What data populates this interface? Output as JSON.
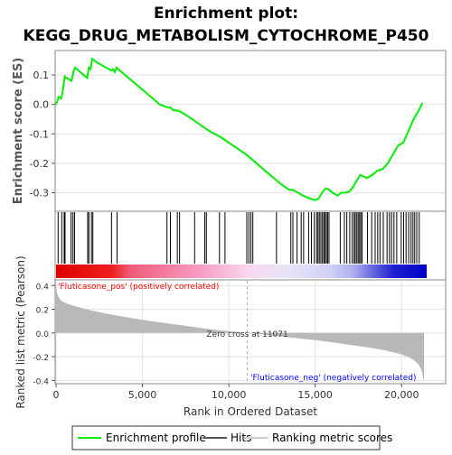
{
  "chart_data": [
    {
      "type": "line",
      "title": "Enrichment plot:",
      "subtitle": "KEGG_DRUG_METABOLISM_CYTOCHROME_P450",
      "ylabel": "Enrichment score (ES)",
      "ylim": [
        -0.36,
        0.18
      ],
      "yticks": [
        "0.1",
        "0.0",
        "-0.1",
        "-0.2",
        "-0.3"
      ],
      "ytick_values": [
        0.1,
        0.0,
        -0.1,
        -0.2,
        -0.3
      ],
      "grid": true,
      "series": [
        {
          "name": "Enrichment profile",
          "color": "#00ee00",
          "x": [
            0,
            150,
            300,
            400,
            500,
            600,
            900,
            1000,
            1100,
            1800,
            1900,
            2000,
            2100,
            2300,
            3200,
            3300,
            3400,
            3500,
            3700,
            4000,
            4500,
            5000,
            5500,
            6000,
            6450,
            6600,
            6800,
            7000,
            7200,
            7500,
            8000,
            8600,
            9000,
            9500,
            10000,
            10500,
            11000,
            11500,
            12000,
            12500,
            13000,
            13500,
            13700,
            14000,
            14300,
            14700,
            15000,
            15200,
            15400,
            15600,
            15800,
            16000,
            16300,
            16500,
            16800,
            17000,
            17200,
            17400,
            17600,
            17800,
            18000,
            18300,
            18600,
            18900,
            19200,
            19500,
            19800,
            20100,
            20400,
            20700,
            21000,
            21200
          ],
          "y": [
            0.0,
            0.025,
            0.02,
            0.05,
            0.095,
            0.09,
            0.08,
            0.11,
            0.125,
            0.09,
            0.125,
            0.12,
            0.155,
            0.145,
            0.115,
            0.12,
            0.11,
            0.125,
            0.115,
            0.1,
            0.075,
            0.05,
            0.025,
            0.0,
            -0.01,
            -0.01,
            -0.02,
            -0.02,
            -0.025,
            -0.035,
            -0.055,
            -0.08,
            -0.095,
            -0.11,
            -0.13,
            -0.15,
            -0.17,
            -0.195,
            -0.22,
            -0.245,
            -0.27,
            -0.29,
            -0.29,
            -0.3,
            -0.31,
            -0.32,
            -0.325,
            -0.32,
            -0.3,
            -0.285,
            -0.29,
            -0.3,
            -0.31,
            -0.3,
            -0.3,
            -0.295,
            -0.28,
            -0.26,
            -0.24,
            -0.245,
            -0.25,
            -0.24,
            -0.225,
            -0.22,
            -0.2,
            -0.17,
            -0.14,
            -0.13,
            -0.09,
            -0.05,
            -0.02,
            0.005
          ]
        }
      ]
    },
    {
      "type": "scatter",
      "title": "Hits",
      "hit_color": "#000000",
      "hits": [
        120,
        330,
        470,
        520,
        870,
        980,
        1070,
        1830,
        1900,
        2050,
        2130,
        3210,
        3530,
        6420,
        6620,
        7020,
        7150,
        8020,
        8610,
        8700,
        9460,
        9780,
        11040,
        11160,
        11280,
        11390,
        12760,
        13590,
        13710,
        13950,
        14190,
        14330,
        14620,
        14780,
        14950,
        15080,
        15160,
        15240,
        15330,
        15420,
        15500,
        15570,
        15650,
        15720,
        15800,
        16450,
        16690,
        16830,
        17000,
        17140,
        17250,
        17320,
        17410,
        17490,
        17570,
        17640,
        17720,
        18030,
        18270,
        18470,
        18620,
        18750,
        18940,
        19160,
        19300,
        19420,
        19560,
        19720,
        19980,
        20120,
        20260,
        20410,
        20550,
        20660,
        20760,
        20880,
        21020
      ]
    },
    {
      "type": "area",
      "ylabel": "Ranked list metric (Pearson)",
      "xlabel": "Rank in Ordered Dataset",
      "xlim": [
        0,
        22500
      ],
      "xticks": [
        "0",
        "5,000",
        "10,000",
        "15,000",
        "20,000"
      ],
      "xtick_values": [
        0,
        5000,
        10000,
        15000,
        20000
      ],
      "ylim": [
        -0.42,
        0.44
      ],
      "yticks": [
        "0.4",
        "0.2",
        "0.0",
        "-0.2",
        "-0.4"
      ],
      "ytick_values": [
        0.4,
        0.2,
        0.0,
        -0.2,
        -0.4
      ],
      "grid": true,
      "fill_color": "#b8b8b8",
      "x": [
        0,
        50,
        150,
        300,
        600,
        1000,
        2000,
        3000,
        4000,
        5000,
        6000,
        7000,
        8000,
        9000,
        10000,
        11071,
        12000,
        13000,
        14000,
        15000,
        16000,
        17000,
        18000,
        19000,
        20000,
        20500,
        20800,
        21000,
        21150,
        21300
      ],
      "values": [
        0.41,
        0.34,
        0.3,
        0.27,
        0.25,
        0.23,
        0.19,
        0.16,
        0.135,
        0.11,
        0.09,
        0.07,
        0.05,
        0.03,
        0.015,
        0.0,
        -0.015,
        -0.03,
        -0.045,
        -0.06,
        -0.08,
        -0.1,
        -0.12,
        -0.145,
        -0.18,
        -0.21,
        -0.24,
        -0.27,
        -0.31,
        -0.41
      ],
      "zero_cross": 11071,
      "zero_cross_label": "Zero cross at 11071",
      "pos_label": "'Fluticasone_pos' (positively correlated)",
      "pos_color": "#ff0000",
      "neg_label": "'Fluticasone_neg' (negatively correlated)",
      "neg_color": "#0000ff"
    }
  ],
  "legend": {
    "placement": "bottom",
    "items": [
      {
        "label": "Enrichment profile",
        "color": "#00ee00"
      },
      {
        "label": "Hits",
        "color": "#555555"
      },
      {
        "label": "Ranking metric scores",
        "color": "#cccccc"
      }
    ]
  }
}
